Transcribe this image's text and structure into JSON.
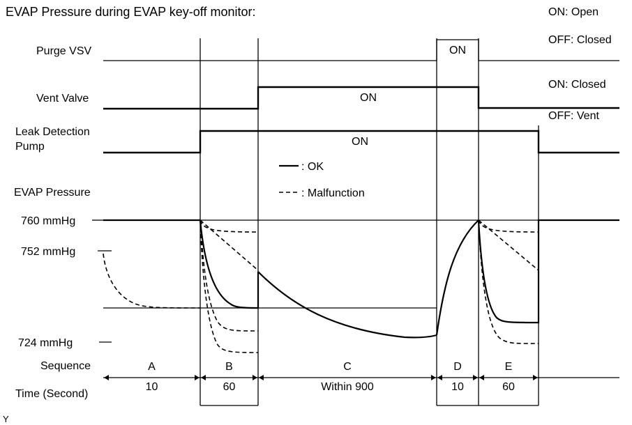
{
  "title": "EVAP Pressure during EVAP key-off monitor:",
  "rows": {
    "purge_vsv": "Purge VSV",
    "vent_valve": "Vent Valve",
    "leak_pump_line1": "Leak Detection",
    "leak_pump_line2": "Pump",
    "evap_pressure": "EVAP Pressure",
    "sequence": "Sequence",
    "time": "Time (Second)"
  },
  "state_legend": {
    "purge_on": "ON: Open",
    "purge_off": "OFF: Closed",
    "vent_on": "ON: Closed",
    "vent_off": "OFF: Vent"
  },
  "on_labels": {
    "purge": "ON",
    "vent": "ON",
    "pump": "ON"
  },
  "line_legend": {
    "ok": ": OK",
    "malfunction": ": Malfunction"
  },
  "pressure_levels": {
    "p760": "760 mmHg",
    "p752": "752 mmHg",
    "p724": "724 mmHg"
  },
  "sequence": [
    {
      "name": "A",
      "time": "10"
    },
    {
      "name": "B",
      "time": "60"
    },
    {
      "name": "C",
      "time": "Within 900"
    },
    {
      "name": "D",
      "time": "10"
    },
    {
      "name": "E",
      "time": "60"
    }
  ],
  "footer_mark": "Y"
}
